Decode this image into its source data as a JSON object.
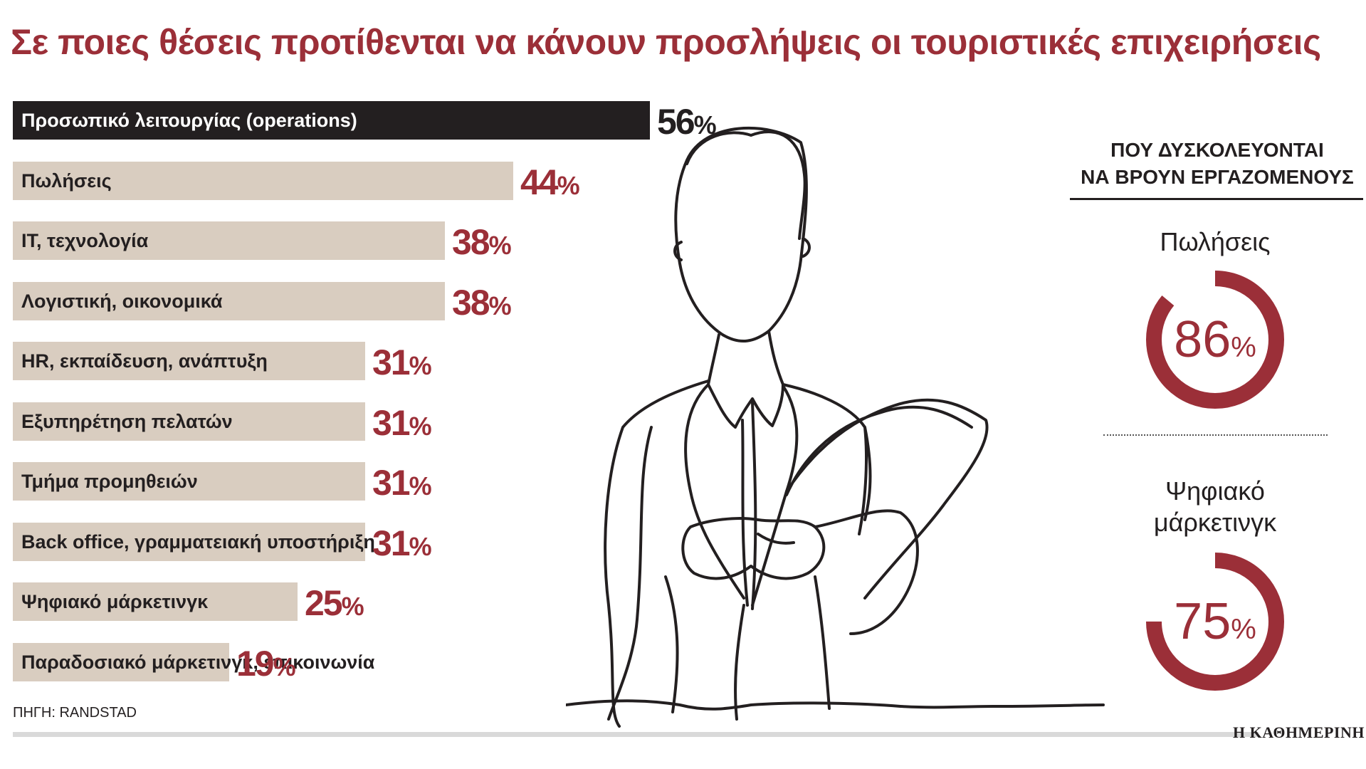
{
  "title": "Σε ποιες θέσεις προτίθενται να κάνουν προσλήψεις οι τουριστικές επιχειρήσεις",
  "chart_data": [
    {
      "type": "bar",
      "orientation": "horizontal",
      "title": "Σε ποιες θέσεις προτίθενται να κάνουν προσλήψεις οι τουριστικές επιχειρήσεις",
      "categories": [
        "Προσωπικό λειτουργίας (operations)",
        "Πωλήσεις",
        "IT, τεχνολογία",
        "Λογιστική, οικονομικά",
        "HR, εκπαίδευση, ανάπτυξη",
        "Εξυπηρέτηση πελατών",
        "Τμήμα προμηθειών",
        "Back office, γραμματειακή υποστήριξη",
        "Ψηφιακό μάρκετινγκ",
        "Παραδοσιακό μάρκετινγκ, επικοινωνία"
      ],
      "values": [
        56,
        44,
        38,
        38,
        31,
        31,
        31,
        31,
        25,
        19
      ],
      "unit": "%",
      "xlim": [
        0,
        56
      ],
      "highlight_index": 0
    },
    {
      "type": "pie",
      "style": "donut",
      "title": "ΠΟΥ ΔΥΣΚΟΛΕΥΟΝΤΑΙ ΝΑ ΒΡΟΥΝ ΕΡΓΑΖΟΜΕΝΟΥΣ",
      "items": [
        {
          "label": "Πωλήσεις",
          "value": 86
        },
        {
          "label": "Ψηφιακό μάρκετινγκ",
          "value": 75
        }
      ],
      "unit": "%"
    }
  ],
  "side": {
    "heading_line1": "ΠΟΥ ΔΥΣΚΟΛΕΥΟΝΤΑΙ",
    "heading_line2": "ΝΑ ΒΡΟΥΝ ΕΡΓΑΖΟΜΕΝΟΥΣ",
    "donut1_label": "Πωλήσεις",
    "donut2_label_line1": "Ψηφιακό",
    "donut2_label_line2": "μάρκετινγκ"
  },
  "source": "ΠΗΓΗ: RANDSTAD",
  "brand": "Η ΚΑΘΗΜΕΡΙΝΗ",
  "colors": {
    "accent": "#9b2f38",
    "bar": "#d9cdc0",
    "highlight_bar": "#231f20",
    "text": "#231f20"
  }
}
